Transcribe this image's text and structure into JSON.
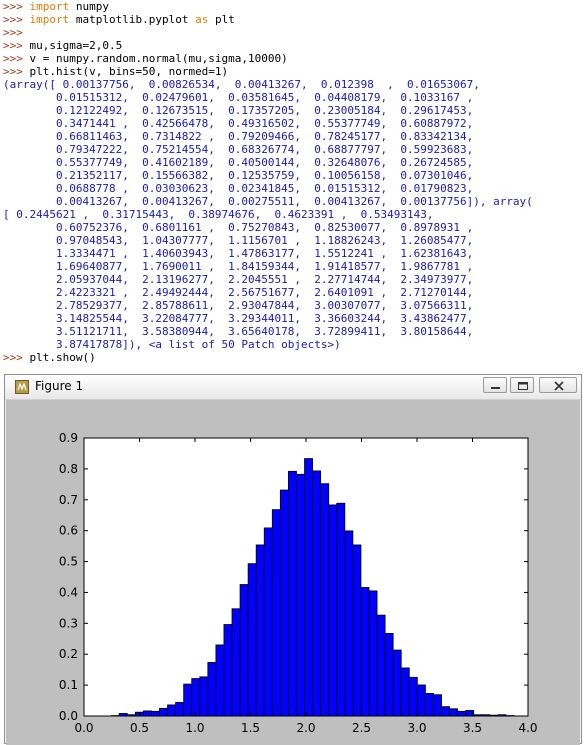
{
  "console": {
    "lines": [
      {
        "prompt": ">>> ",
        "keyword": "import",
        "text": " numpy"
      },
      {
        "prompt": ">>> ",
        "keyword": "import",
        "text": " matplotlib.pyplot ",
        "keyword2": "as",
        "text2": " plt"
      },
      {
        "prompt": ">>>",
        "text": ""
      },
      {
        "prompt": ">>> ",
        "text": "mu,sigma=2,0.5"
      },
      {
        "prompt": ">>> ",
        "text": "v = numpy.random.normal(mu,sigma,10000)"
      },
      {
        "prompt": ">>> ",
        "text": "plt.hist(v, bins=50, normed=1)"
      },
      {
        "out": "(array([ 0.00137756,  0.00826534,  0.00413267,  0.012398  ,  0.01653067,"
      },
      {
        "out": "        0.01515312,  0.02479601,  0.03581645,  0.04408179,  0.1033167 ,"
      },
      {
        "out": "        0.12122492,  0.12673515,  0.17357205,  0.23005184,  0.29617453,"
      },
      {
        "out": "        0.3471441 ,  0.42566478,  0.49316502,  0.55377749,  0.60887972,"
      },
      {
        "out": "        0.66811463,  0.7314822 ,  0.79209466,  0.78245177,  0.83342134,"
      },
      {
        "out": "        0.79347222,  0.75214554,  0.68326774,  0.68877797,  0.59923683,"
      },
      {
        "out": "        0.55377749,  0.41602189,  0.40500144,  0.32648076,  0.26724585,"
      },
      {
        "out": "        0.21352117,  0.15566382,  0.12535759,  0.10056158,  0.07301046,"
      },
      {
        "out": "        0.0688778 ,  0.03030623,  0.02341845,  0.01515312,  0.01790823,"
      },
      {
        "out": "        0.00413267,  0.00413267,  0.00275511,  0.00413267,  0.00137756]), array("
      },
      {
        "out": "[ 0.2445621 ,  0.31715443,  0.38974676,  0.4623391 ,  0.53493143,"
      },
      {
        "out": "        0.60752376,  0.6801161 ,  0.75270843,  0.82530077,  0.8978931 ,"
      },
      {
        "out": "        0.97048543,  1.04307777,  1.1156701 ,  1.18826243,  1.26085477,"
      },
      {
        "out": "        1.3334471 ,  1.40603943,  1.47863177,  1.5512241 ,  1.62381643,"
      },
      {
        "out": "        1.69640877,  1.7690011 ,  1.84159344,  1.91418577,  1.9867781 ,"
      },
      {
        "out": "        2.05937044,  2.13196277,  2.2045551 ,  2.27714744,  2.34973977,"
      },
      {
        "out": "        2.4223321 ,  2.49492444,  2.56751677,  2.6401091 ,  2.71270144,"
      },
      {
        "out": "        2.78529377,  2.85788611,  2.93047844,  3.00307077,  3.07566311,"
      },
      {
        "out": "        3.14825544,  3.22084777,  3.29344011,  3.36603244,  3.43862477,"
      },
      {
        "out": "        3.51121711,  3.58380944,  3.65640178,  3.72899411,  3.80158644,"
      },
      {
        "out": "        3.87417878]), <a list of 50 Patch objects>)"
      },
      {
        "prompt": ">>> ",
        "text": "plt.show()"
      }
    ]
  },
  "figure_window": {
    "title": "Figure 1",
    "buttons": {
      "minimize": "minimize-icon",
      "maximize": "maximize-icon",
      "close": "close-icon"
    }
  },
  "colors": {
    "bar_fill": "#0000ff",
    "bar_edge": "#000000",
    "canvas_bg": "#bfbfbf",
    "axes_bg": "#ffffff"
  },
  "chart_data": {
    "type": "bar",
    "title": "",
    "xlabel": "",
    "ylabel": "",
    "xlim": [
      0.0,
      4.0
    ],
    "ylim": [
      0.0,
      0.9
    ],
    "xticks": [
      "0.0",
      "0.5",
      "1.0",
      "1.5",
      "2.0",
      "2.5",
      "3.0",
      "3.5",
      "4.0"
    ],
    "yticks": [
      "0.0",
      "0.1",
      "0.2",
      "0.3",
      "0.4",
      "0.5",
      "0.6",
      "0.7",
      "0.8",
      "0.9"
    ],
    "grid": false,
    "bin_edges": [
      0.2445621,
      0.31715443,
      0.38974676,
      0.4623391,
      0.53493143,
      0.60752376,
      0.6801161,
      0.75270843,
      0.82530077,
      0.8978931,
      0.97048543,
      1.04307777,
      1.1156701,
      1.18826243,
      1.26085477,
      1.3334471,
      1.40603943,
      1.47863177,
      1.5512241,
      1.62381643,
      1.69640877,
      1.7690011,
      1.84159344,
      1.91418577,
      1.9867781,
      2.05937044,
      2.13196277,
      2.2045551,
      2.27714744,
      2.34973977,
      2.4223321,
      2.49492444,
      2.56751677,
      2.6401091,
      2.71270144,
      2.78529377,
      2.85788611,
      2.93047844,
      3.00307077,
      3.07566311,
      3.14825544,
      3.22084777,
      3.29344011,
      3.36603244,
      3.43862477,
      3.51121711,
      3.58380944,
      3.65640178,
      3.72899411,
      3.80158644,
      3.87417878
    ],
    "values": [
      0.00137756,
      0.00826534,
      0.00413267,
      0.012398,
      0.01653067,
      0.01515312,
      0.02479601,
      0.03581645,
      0.04408179,
      0.1033167,
      0.12122492,
      0.12673515,
      0.17357205,
      0.23005184,
      0.29617453,
      0.3471441,
      0.42566478,
      0.49316502,
      0.55377749,
      0.60887972,
      0.66811463,
      0.7314822,
      0.79209466,
      0.78245177,
      0.83342134,
      0.79347222,
      0.75214554,
      0.68326774,
      0.68877797,
      0.59923683,
      0.55377749,
      0.41602189,
      0.40500144,
      0.32648076,
      0.26724585,
      0.21352117,
      0.15566382,
      0.12535759,
      0.10056158,
      0.07301046,
      0.0688778,
      0.03030623,
      0.02341845,
      0.01515312,
      0.01790823,
      0.00413267,
      0.00413267,
      0.00275511,
      0.00413267,
      0.00137756
    ]
  }
}
